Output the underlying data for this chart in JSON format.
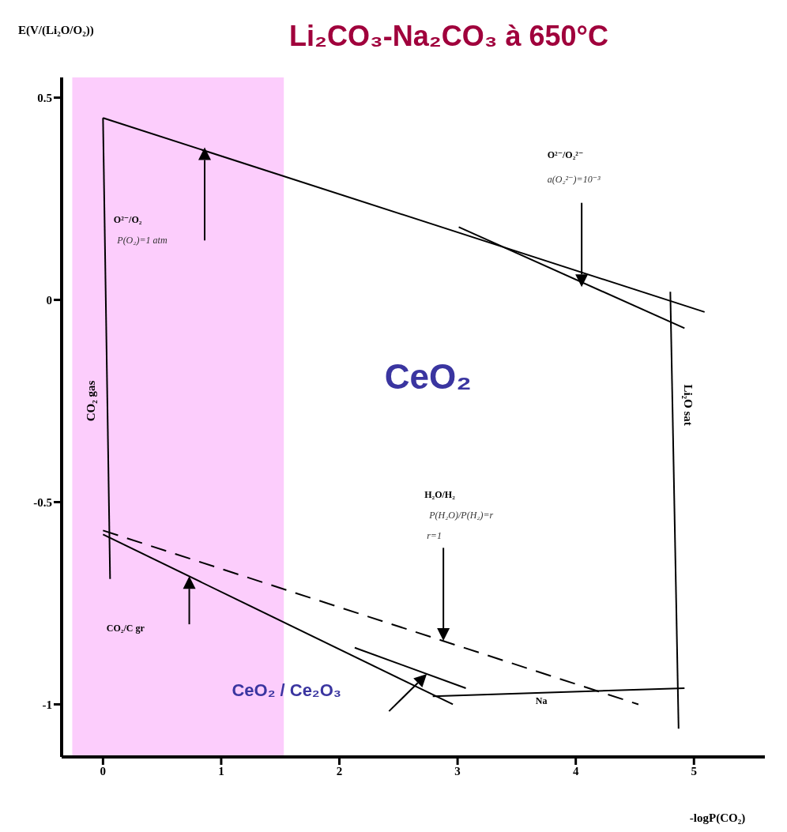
{
  "chart_data": {
    "type": "line",
    "title": "Li₂CO₃-Na₂CO₃ à 650°C",
    "xlabel": "-logP(CO₂)",
    "ylabel": "E(V/(Li₂O/O₂))",
    "marker": "none",
    "series": [
      {
        "color": "#000000",
        "x": [
          0,
          5.09
        ],
        "values": [
          0.45,
          -0.03
        ]
      },
      {
        "color": "#000000",
        "x": [
          0,
          0.06
        ],
        "values": [
          0.45,
          -0.69
        ]
      },
      {
        "color": "#000000",
        "x": [
          3.01,
          4.92
        ],
        "values": [
          0.18,
          -0.07
        ]
      },
      {
        "color": "#000000",
        "x": [
          4.8,
          4.87
        ],
        "values": [
          0.02,
          -1.06
        ]
      },
      {
        "color": "#000000",
        "x": [
          0,
          2.96
        ],
        "values": [
          -0.58,
          -1.0
        ]
      },
      {
        "color": "#000000",
        "x": [
          0,
          4.53
        ],
        "values": [
          -0.57,
          -1.0
        ],
        "line_style": "dashed"
      },
      {
        "color": "#000000",
        "x": [
          2.13,
          3.07
        ],
        "values": [
          -0.86,
          -0.96
        ]
      },
      {
        "color": "#000000",
        "x": [
          2.79,
          4.92
        ],
        "values": [
          -0.98,
          -0.96
        ]
      }
    ],
    "xlim": [
      -0.35,
      5.6
    ],
    "ylim": [
      -1.13,
      0.55
    ],
    "xticks": [
      0,
      1,
      2,
      3,
      4,
      5
    ],
    "yticks": [
      -1,
      -0.5,
      0,
      0.5
    ],
    "bands": [
      {
        "axis": "x",
        "from": -0.26,
        "to": 1.53,
        "color": "#fccdfc"
      }
    ],
    "annotations": [
      "O²⁻/O₂",
      "P(O₂)=1 atm",
      "O²⁻/O₂²⁻",
      "a(O₂²⁻)=10⁻³",
      "H₂O/H₂",
      "P(H₂O)/P(H₂)=r",
      "r=1",
      "CO₂/C gr",
      "CeO₂ / Ce₂O₃",
      "CeO₂",
      "CO₂ gas",
      "Li₂O sat",
      "Na"
    ]
  }
}
